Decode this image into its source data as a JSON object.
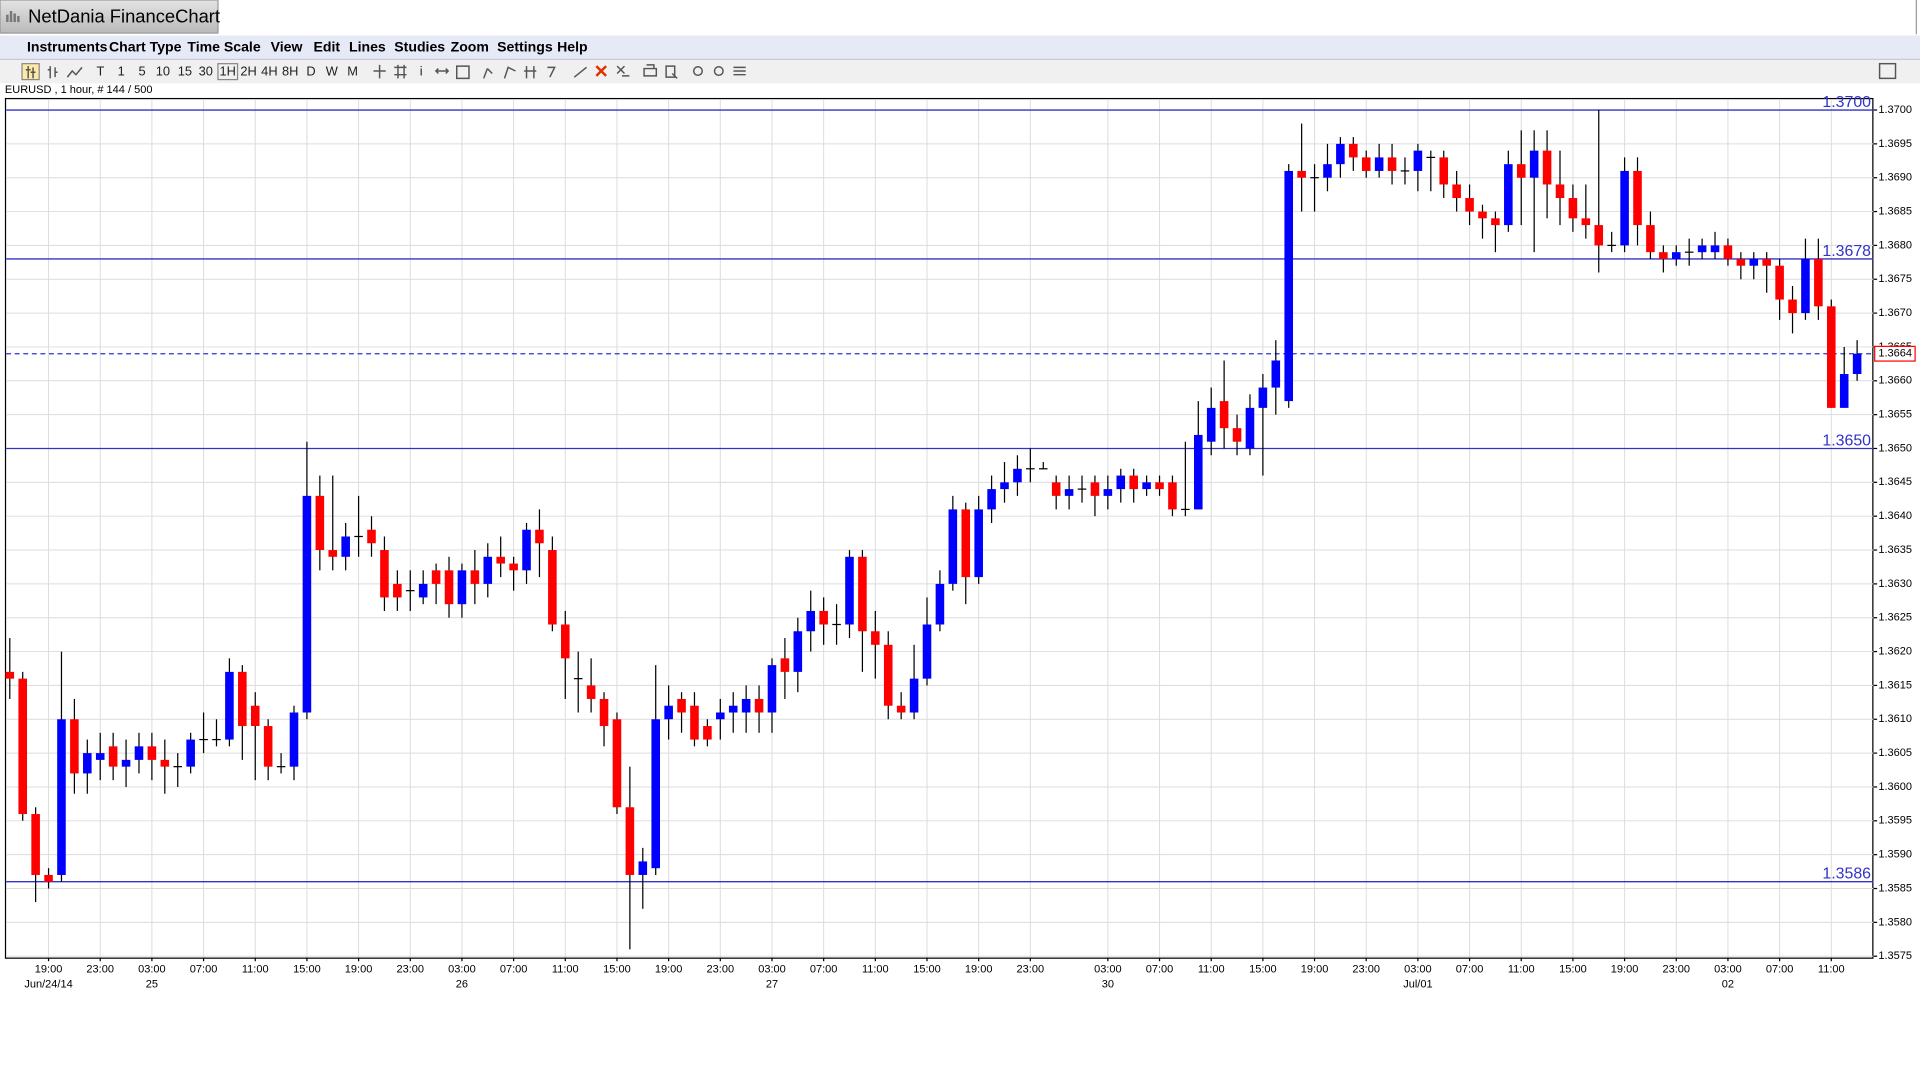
{
  "header": {
    "title": "NetDania FinanceChart"
  },
  "menu": [
    "Instruments",
    "Chart Type",
    "Time Scale",
    "View",
    "Edit",
    "Lines",
    "Studies",
    "Zoom",
    "Settings",
    "Help"
  ],
  "toolbar": [
    "T",
    "1",
    "5",
    "10",
    "15",
    "30",
    "1H",
    "2H",
    "4H",
    "8H",
    "D",
    "W",
    "M",
    "i"
  ],
  "chart_data": {
    "type": "candlestick",
    "title": "EURUSD , 1 hour, # 144 / 500",
    "up_color": "#0000ff",
    "down_color": "#ff0000",
    "grid": true,
    "categories": [
      null,
      null,
      null,
      "19:00",
      null,
      null,
      null,
      "23:00",
      null,
      null,
      null,
      "03:00",
      null,
      null,
      null,
      "07:00",
      null,
      null,
      null,
      "11:00",
      null,
      null,
      null,
      "15:00",
      null,
      null,
      null,
      "19:00",
      null,
      null,
      null,
      "23:00",
      null,
      null,
      null,
      "03:00",
      null,
      null,
      null,
      "07:00",
      null,
      null,
      null,
      "11:00",
      null,
      null,
      null,
      "15:00",
      null,
      null,
      null,
      "19:00",
      null,
      null,
      null,
      "23:00",
      null,
      null,
      null,
      "03:00",
      null,
      null,
      null,
      "07:00",
      null,
      null,
      null,
      "11:00",
      null,
      null,
      null,
      "15:00",
      null,
      null,
      null,
      "19:00",
      null,
      null,
      null,
      "23:00",
      null,
      null,
      null,
      null,
      null,
      "03:00",
      null,
      null,
      null,
      "07:00",
      null,
      null,
      null,
      "11:00",
      null,
      null,
      null,
      "15:00",
      null,
      null,
      null,
      "19:00",
      null,
      null,
      null,
      "23:00",
      null,
      null,
      null,
      "03:00",
      null,
      null,
      null,
      "07:00",
      null,
      null,
      null,
      "11:00",
      null,
      null,
      null,
      "15:00",
      null,
      null,
      null,
      "19:00",
      null,
      null,
      null,
      "23:00",
      null,
      null,
      null,
      "03:00",
      null,
      null,
      null,
      "07:00",
      null,
      null,
      null,
      "11:00",
      null,
      null
    ],
    "dates": [
      null,
      null,
      null,
      "Jun/24/14",
      null,
      null,
      null,
      null,
      null,
      null,
      null,
      "25",
      null,
      null,
      null,
      null,
      null,
      null,
      null,
      null,
      null,
      null,
      null,
      null,
      null,
      null,
      null,
      null,
      null,
      null,
      null,
      null,
      null,
      null,
      null,
      "26",
      null,
      null,
      null,
      null,
      null,
      null,
      null,
      null,
      null,
      null,
      null,
      null,
      null,
      null,
      null,
      null,
      null,
      null,
      null,
      null,
      null,
      null,
      null,
      "27",
      null,
      null,
      null,
      null,
      null,
      null,
      null,
      null,
      null,
      null,
      null,
      null,
      null,
      null,
      null,
      null,
      null,
      null,
      null,
      null,
      null,
      null,
      null,
      null,
      null,
      "30",
      null,
      null,
      null,
      null,
      null,
      null,
      null,
      null,
      null,
      null,
      null,
      null,
      null,
      null,
      null,
      null,
      null,
      null,
      null,
      null,
      null,
      null,
      null,
      "Jul/01",
      null,
      null,
      null,
      null,
      null,
      null,
      null,
      null,
      null,
      null,
      null,
      null,
      null,
      null,
      null,
      null,
      null,
      null,
      null,
      null,
      null,
      null,
      null,
      "02",
      null,
      null,
      null,
      null,
      null,
      null,
      null,
      null,
      null,
      null
    ],
    "open": [
      1.3617,
      1.3616,
      1.3596,
      1.3587,
      1.3587,
      1.361,
      1.3602,
      1.3604,
      1.3606,
      1.3603,
      1.3604,
      1.3606,
      1.3604,
      1.3603,
      1.3603,
      1.3607,
      1.3607,
      1.3607,
      1.3617,
      1.3612,
      1.3609,
      1.3603,
      1.3603,
      1.3611,
      1.3643,
      1.3635,
      1.3634,
      1.3637,
      1.3638,
      1.3635,
      1.363,
      1.3629,
      1.3628,
      1.3632,
      1.3632,
      1.3627,
      1.3632,
      1.363,
      1.3634,
      1.3633,
      1.3632,
      1.3638,
      1.3635,
      1.3624,
      1.3616,
      1.3615,
      1.3613,
      1.361,
      1.3597,
      1.3587,
      1.3588,
      1.361,
      1.3613,
      1.3612,
      1.3609,
      1.361,
      1.3611,
      1.3611,
      1.3613,
      1.3611,
      1.3619,
      1.3617,
      1.3623,
      1.3626,
      1.3624,
      1.3624,
      1.3634,
      1.3623,
      1.3621,
      1.3612,
      1.3611,
      1.3616,
      1.3624,
      1.363,
      1.3641,
      1.3631,
      1.3641,
      1.3644,
      1.3645,
      1.3647,
      1.3647,
      1.3645,
      1.3643,
      1.3644,
      1.3645,
      1.3643,
      1.3644,
      1.3646,
      1.3644,
      1.3645,
      1.3645,
      1.3641,
      1.3641,
      1.3651,
      1.3657,
      1.3653,
      1.365,
      1.3656,
      1.3659,
      1.3657,
      1.3691,
      1.369,
      1.369,
      1.3692,
      1.3695,
      1.3693,
      1.3691,
      1.3693,
      1.3691,
      1.3691,
      1.3693,
      1.3693,
      1.3689,
      1.3687,
      1.3685,
      1.3684,
      1.3683,
      1.3692,
      1.369,
      1.3694,
      1.3689,
      1.3687,
      1.3684,
      1.3683,
      1.368,
      1.368,
      1.3691,
      1.3683,
      1.3679,
      1.3678,
      1.3679,
      1.3679,
      1.3679,
      1.368,
      1.3678,
      1.3677,
      1.3678,
      1.3677,
      1.3672,
      1.367,
      1.3678,
      1.3671,
      1.3656,
      1.3661
    ],
    "high": [
      1.3622,
      1.3617,
      1.3597,
      1.3588,
      1.362,
      1.3613,
      1.3607,
      1.3608,
      1.3608,
      1.3607,
      1.3608,
      1.3608,
      1.3607,
      1.3605,
      1.3608,
      1.3611,
      1.361,
      1.3619,
      1.3618,
      1.3614,
      1.361,
      1.3605,
      1.3612,
      1.3651,
      1.3646,
      1.3646,
      1.3639,
      1.3643,
      1.364,
      1.3637,
      1.3632,
      1.3632,
      1.3632,
      1.3633,
      1.3634,
      1.3633,
      1.3635,
      1.3636,
      1.3637,
      1.3634,
      1.3639,
      1.3641,
      1.3637,
      1.3626,
      1.362,
      1.3619,
      1.3614,
      1.3611,
      1.3603,
      1.3591,
      1.3618,
      1.3615,
      1.3614,
      1.3614,
      1.361,
      1.3613,
      1.3614,
      1.3615,
      1.3615,
      1.3619,
      1.3622,
      1.3625,
      1.3629,
      1.3628,
      1.3627,
      1.3635,
      1.3635,
      1.3626,
      1.3623,
      1.3614,
      1.3621,
      1.3628,
      1.3632,
      1.3643,
      1.3642,
      1.3643,
      1.3646,
      1.3648,
      1.3649,
      1.365,
      1.3648,
      1.3646,
      1.3646,
      1.3646,
      1.3646,
      1.3646,
      1.3647,
      1.3647,
      1.3646,
      1.3646,
      1.3646,
      1.3651,
      1.3657,
      1.3659,
      1.3663,
      1.3655,
      1.3658,
      1.3661,
      1.3666,
      1.3692,
      1.3698,
      1.3692,
      1.3695,
      1.3696,
      1.3696,
      1.3694,
      1.3695,
      1.3695,
      1.3693,
      1.3695,
      1.3694,
      1.3694,
      1.3691,
      1.3689,
      1.3686,
      1.3685,
      1.3694,
      1.3697,
      1.3697,
      1.3697,
      1.3694,
      1.3689,
      1.3689,
      1.37,
      1.3682,
      1.3693,
      1.3693,
      1.3685,
      1.368,
      1.368,
      1.3681,
      1.3681,
      1.3682,
      1.3681,
      1.3679,
      1.3679,
      1.3679,
      1.3678,
      1.3674,
      1.3681,
      1.3681,
      1.3672,
      1.3665,
      1.3666
    ],
    "low": [
      1.3613,
      1.3595,
      1.3583,
      1.3585,
      1.3586,
      1.3599,
      1.3599,
      1.3601,
      1.3601,
      1.36,
      1.3602,
      1.3601,
      1.3599,
      1.36,
      1.3602,
      1.3605,
      1.3606,
      1.3606,
      1.3604,
      1.3601,
      1.3601,
      1.3602,
      1.3601,
      1.361,
      1.3632,
      1.3632,
      1.3632,
      1.3634,
      1.3634,
      1.3626,
      1.3626,
      1.3626,
      1.3627,
      1.3627,
      1.3625,
      1.3625,
      1.3627,
      1.3628,
      1.3631,
      1.3629,
      1.363,
      1.3631,
      1.3623,
      1.3613,
      1.3611,
      1.3611,
      1.3606,
      1.3596,
      1.3576,
      1.3582,
      1.3587,
      1.3607,
      1.3608,
      1.3606,
      1.3606,
      1.3607,
      1.3608,
      1.3608,
      1.3608,
      1.3608,
      1.3613,
      1.3614,
      1.362,
      1.3621,
      1.3621,
      1.3622,
      1.3617,
      1.3616,
      1.361,
      1.361,
      1.361,
      1.3615,
      1.3623,
      1.3629,
      1.3627,
      1.363,
      1.3639,
      1.3642,
      1.3643,
      1.3645,
      1.3647,
      1.3641,
      1.3641,
      1.3642,
      1.364,
      1.3641,
      1.3642,
      1.3642,
      1.3643,
      1.3643,
      1.364,
      1.364,
      1.3641,
      1.3649,
      1.365,
      1.3649,
      1.3649,
      1.3646,
      1.3655,
      1.3656,
      1.3685,
      1.3685,
      1.3688,
      1.369,
      1.3691,
      1.369,
      1.369,
      1.3689,
      1.3689,
      1.3688,
      1.3688,
      1.3687,
      1.3685,
      1.3683,
      1.3681,
      1.3679,
      1.3682,
      1.3683,
      1.3679,
      1.3684,
      1.3683,
      1.3682,
      1.3681,
      1.3676,
      1.3679,
      1.3679,
      1.368,
      1.3678,
      1.3676,
      1.3677,
      1.3677,
      1.3678,
      1.3678,
      1.3677,
      1.3675,
      1.3675,
      1.3673,
      1.3669,
      1.3667,
      1.3669,
      1.3669,
      1.3656,
      1.3656,
      1.366
    ],
    "close": [
      1.3616,
      1.3596,
      1.3587,
      1.3586,
      1.361,
      1.3602,
      1.3605,
      1.3605,
      1.3603,
      1.3604,
      1.3606,
      1.3604,
      1.3603,
      1.3603,
      1.3607,
      1.3607,
      1.3607,
      1.3617,
      1.3609,
      1.3609,
      1.3603,
      1.3603,
      1.3611,
      1.3643,
      1.3635,
      1.3634,
      1.3637,
      1.3637,
      1.3636,
      1.3628,
      1.3628,
      1.3629,
      1.363,
      1.363,
      1.3627,
      1.3632,
      1.363,
      1.3634,
      1.3633,
      1.3632,
      1.3638,
      1.3636,
      1.3624,
      1.3619,
      1.3616,
      1.3613,
      1.3609,
      1.3597,
      1.3587,
      1.3589,
      1.361,
      1.3612,
      1.3611,
      1.3607,
      1.3607,
      1.3611,
      1.3612,
      1.3613,
      1.3611,
      1.3618,
      1.3617,
      1.3623,
      1.3626,
      1.3624,
      1.3624,
      1.3634,
      1.3623,
      1.3621,
      1.3612,
      1.3611,
      1.3616,
      1.3624,
      1.363,
      1.3641,
      1.3631,
      1.3641,
      1.3644,
      1.3645,
      1.3647,
      1.3647,
      1.3647,
      1.3643,
      1.3644,
      1.3644,
      1.3643,
      1.3644,
      1.3646,
      1.3644,
      1.3645,
      1.3644,
      1.3641,
      1.3641,
      1.3652,
      1.3656,
      1.3653,
      1.3651,
      1.3656,
      1.3659,
      1.3663,
      1.3691,
      1.369,
      1.369,
      1.3692,
      1.3695,
      1.3693,
      1.3691,
      1.3693,
      1.3691,
      1.3691,
      1.3694,
      1.3693,
      1.3689,
      1.3687,
      1.3685,
      1.3684,
      1.3683,
      1.3692,
      1.369,
      1.3694,
      1.3689,
      1.3687,
      1.3684,
      1.3683,
      1.368,
      1.368,
      1.3691,
      1.3683,
      1.3679,
      1.3678,
      1.3679,
      1.3679,
      1.368,
      1.368,
      1.3678,
      1.3677,
      1.3678,
      1.3677,
      1.3672,
      1.367,
      1.3678,
      1.3671,
      1.3656,
      1.3661,
      1.3664
    ],
    "ylim": [
      1.35748,
      1.37016
    ],
    "yticks": [
      1.3575,
      {
        "value": 1.358,
        "label": "1.3580"
      },
      1.3585,
      {
        "value": 1.359,
        "label": "1.3590"
      },
      1.3595,
      {
        "value": 1.36,
        "label": "1.3600"
      },
      1.3605,
      {
        "value": 1.361,
        "label": "1.3610"
      },
      1.3615,
      {
        "value": 1.362,
        "label": "1.3620"
      },
      1.3625,
      {
        "value": 1.363,
        "label": "1.3630"
      },
      1.3635,
      {
        "value": 1.364,
        "label": "1.3640"
      },
      1.3645,
      {
        "value": 1.365,
        "label": "1.3650"
      },
      1.3655,
      {
        "value": 1.366,
        "label": "1.3660"
      },
      1.3665,
      {
        "value": 1.367,
        "label": "1.3670"
      },
      1.3675,
      {
        "value": 1.368,
        "label": "1.3680"
      },
      1.3685,
      {
        "value": 1.369,
        "label": "1.3690"
      },
      1.3695,
      {
        "value": 1.37,
        "label": "1.3700"
      }
    ],
    "levels": [
      {
        "value": 1.37,
        "label": "1.3700"
      },
      {
        "value": 1.3678,
        "label": "1.3678"
      },
      {
        "value": 1.365,
        "label": "1.3650"
      },
      {
        "value": 1.3586,
        "label": "1.3586"
      }
    ],
    "level_color": "#3232c8",
    "last_price": {
      "value": 1.3664,
      "label": "1.3664"
    }
  }
}
